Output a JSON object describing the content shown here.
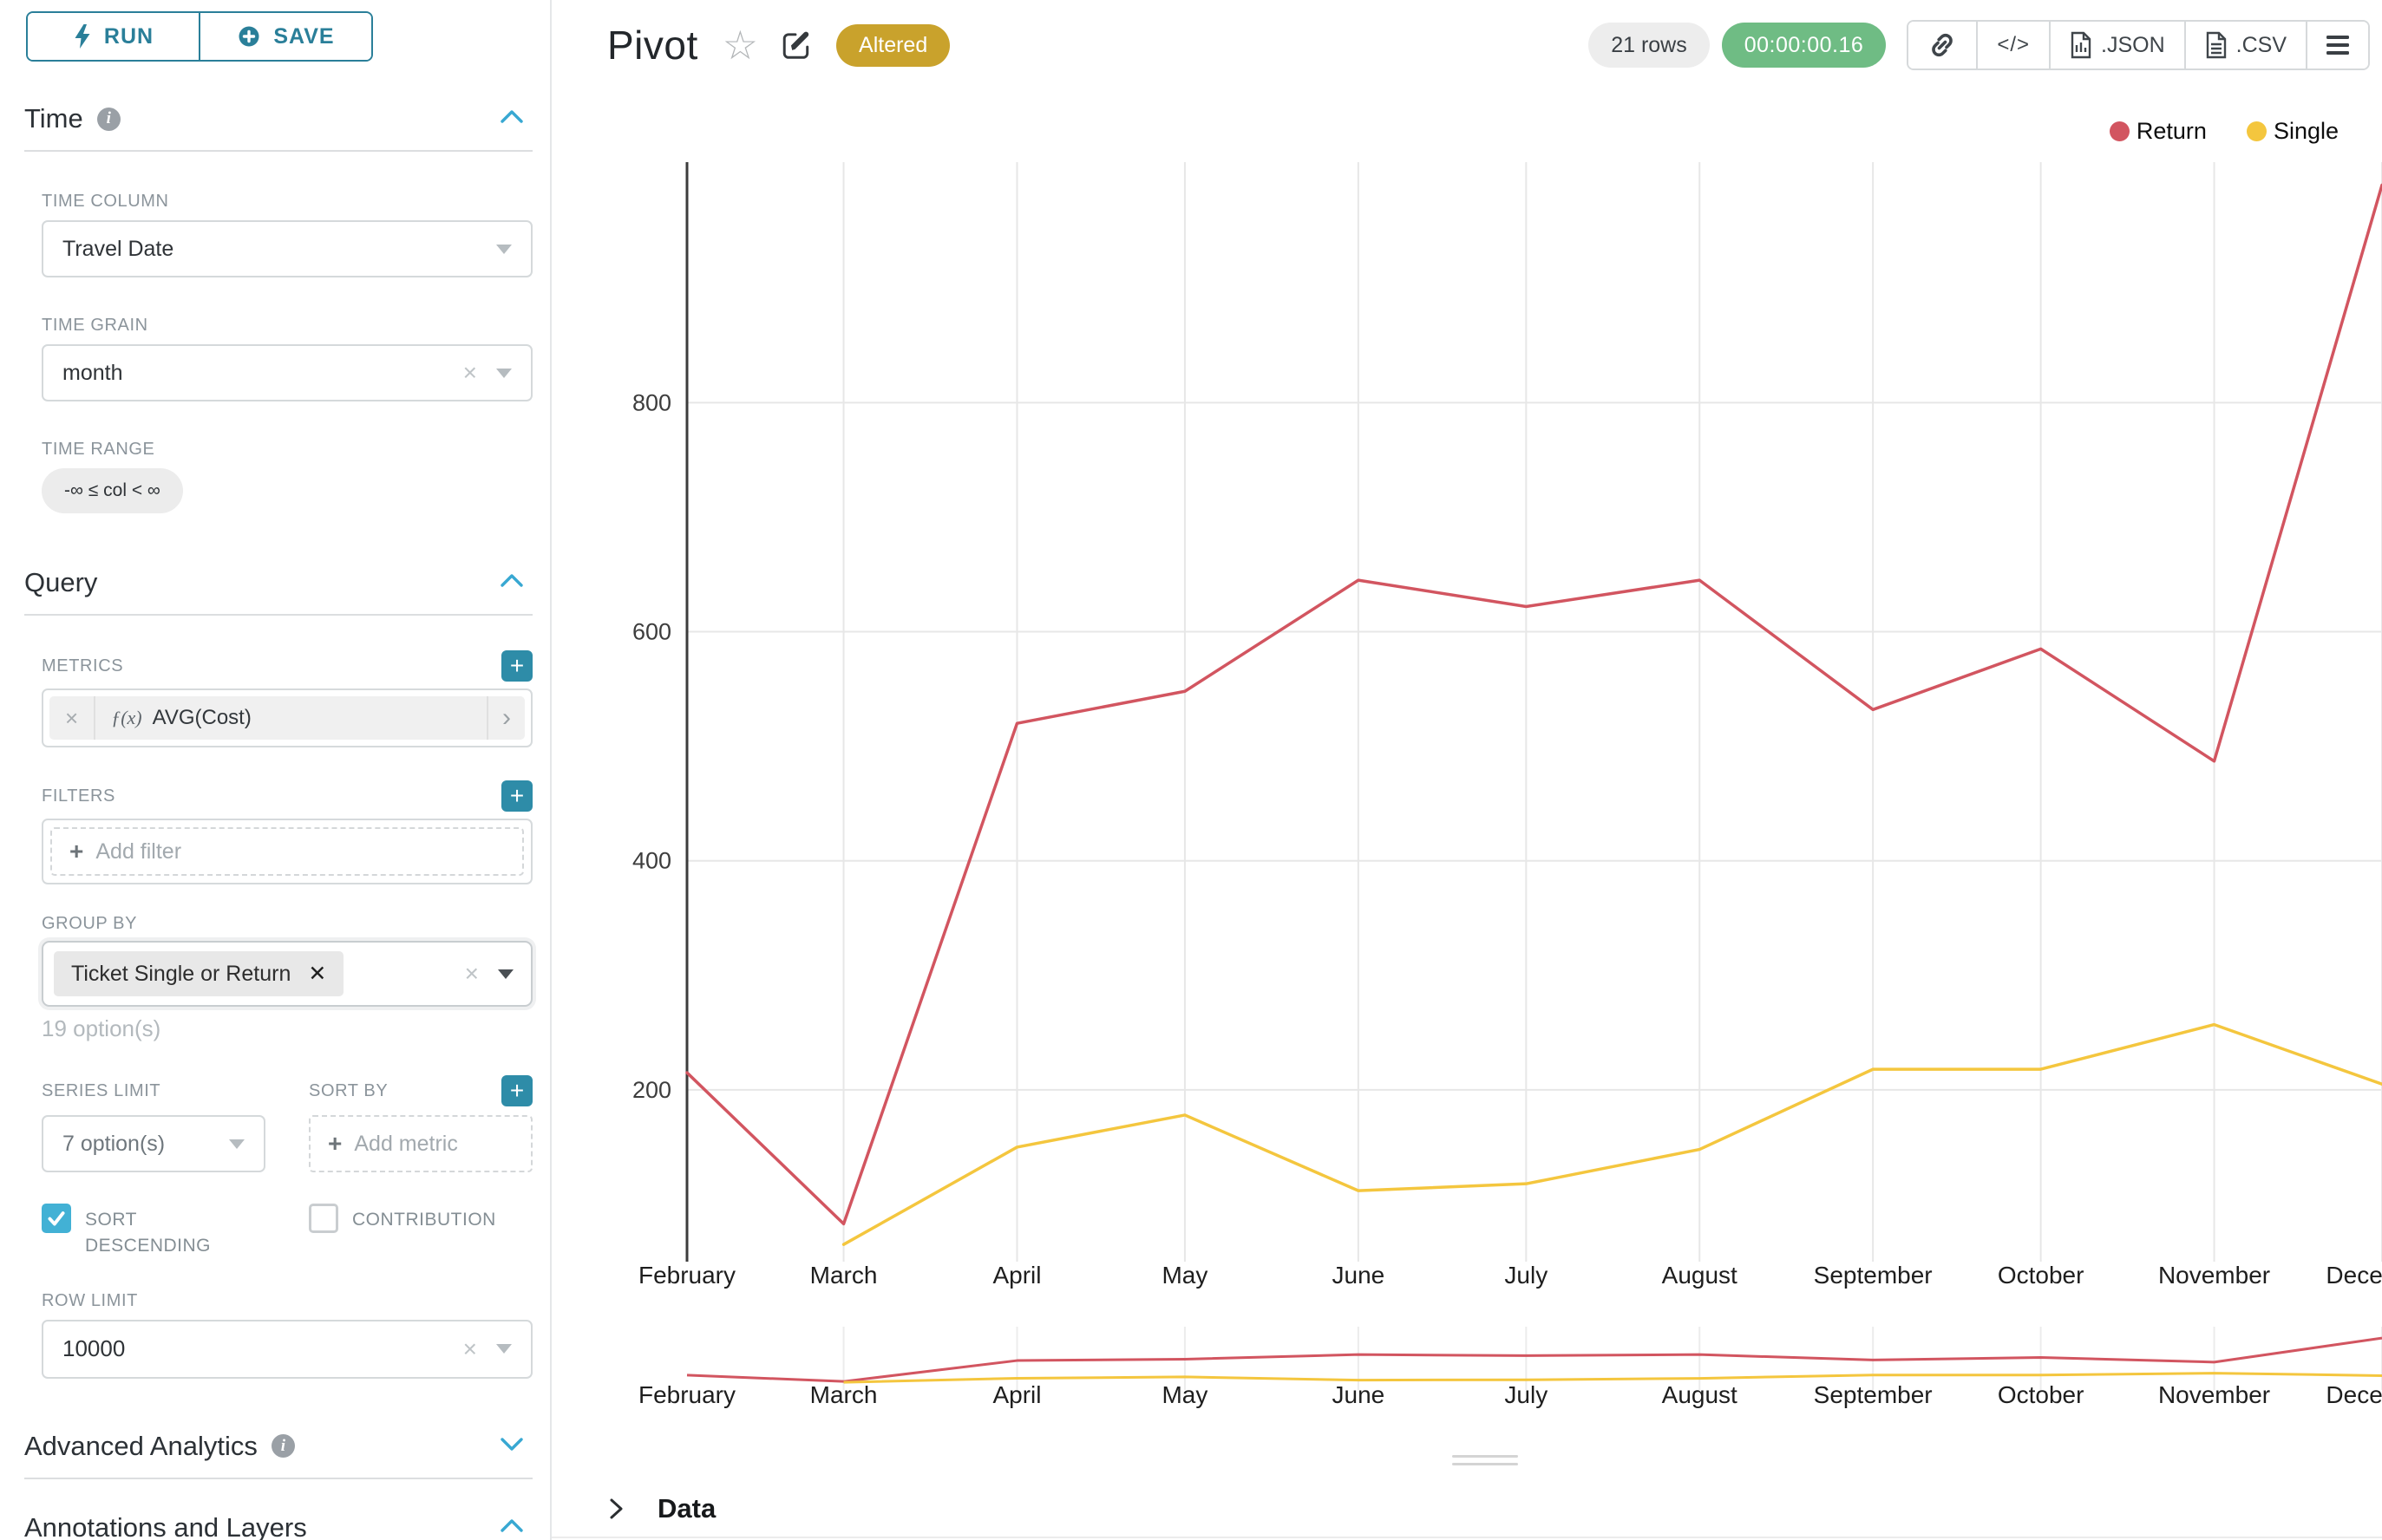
{
  "sidebar": {
    "run_label": "RUN",
    "save_label": "SAVE",
    "time": {
      "title": "Time",
      "time_column_label": "TIME COLUMN",
      "time_column_value": "Travel Date",
      "time_grain_label": "TIME GRAIN",
      "time_grain_value": "month",
      "time_range_label": "TIME RANGE",
      "time_range_value": "-∞ ≤ col < ∞"
    },
    "query": {
      "title": "Query",
      "metrics_label": "METRICS",
      "metric_function_prefix": "ƒ(x)",
      "metric_value": "AVG(Cost)",
      "filters_label": "FILTERS",
      "add_filter_placeholder": "Add filter",
      "group_by_label": "GROUP BY",
      "group_by_tag": "Ticket Single or Return",
      "group_by_hint": "19 option(s)",
      "series_limit_label": "SERIES LIMIT",
      "series_limit_value": "7 option(s)",
      "sort_by_label": "SORT BY",
      "add_metric_placeholder": "Add metric",
      "sort_descending_label": "SORT DESCENDING",
      "sort_descending_checked": true,
      "contribution_label": "CONTRIBUTION",
      "contribution_checked": false,
      "row_limit_label": "ROW LIMIT",
      "row_limit_value": "10000"
    },
    "advanced_analytics_title": "Advanced Analytics",
    "annotations_title": "Annotations and Layers"
  },
  "header": {
    "title": "Pivot",
    "altered_badge": "Altered",
    "rows_badge": "21 rows",
    "timer_badge": "00:00:00.16",
    "code_button_glyph": "</>",
    "json_button_label": ".JSON",
    "csv_button_label": ".CSV"
  },
  "data_panel": {
    "title": "Data"
  },
  "chart_data": {
    "type": "line",
    "categories": [
      "February",
      "March",
      "April",
      "May",
      "June",
      "July",
      "August",
      "September",
      "October",
      "November",
      "December"
    ],
    "x_day_offsets": [
      0,
      28,
      59,
      89,
      120,
      150,
      181,
      212,
      242,
      273,
      303
    ],
    "series": [
      {
        "name": "Return",
        "color": "#d25560",
        "values": [
          215,
          83,
          520,
          548,
          645,
          622,
          645,
          532,
          585,
          487,
          990
        ]
      },
      {
        "name": "Single",
        "color": "#f4c63e",
        "values": [
          null,
          65,
          150,
          178,
          112,
          118,
          148,
          218,
          218,
          257,
          205
        ]
      }
    ],
    "ylim": [
      50,
      1010
    ],
    "yticks": [
      200,
      400,
      600,
      800
    ],
    "grid": true,
    "legend_position": "top-right",
    "has_range_selector": true
  }
}
